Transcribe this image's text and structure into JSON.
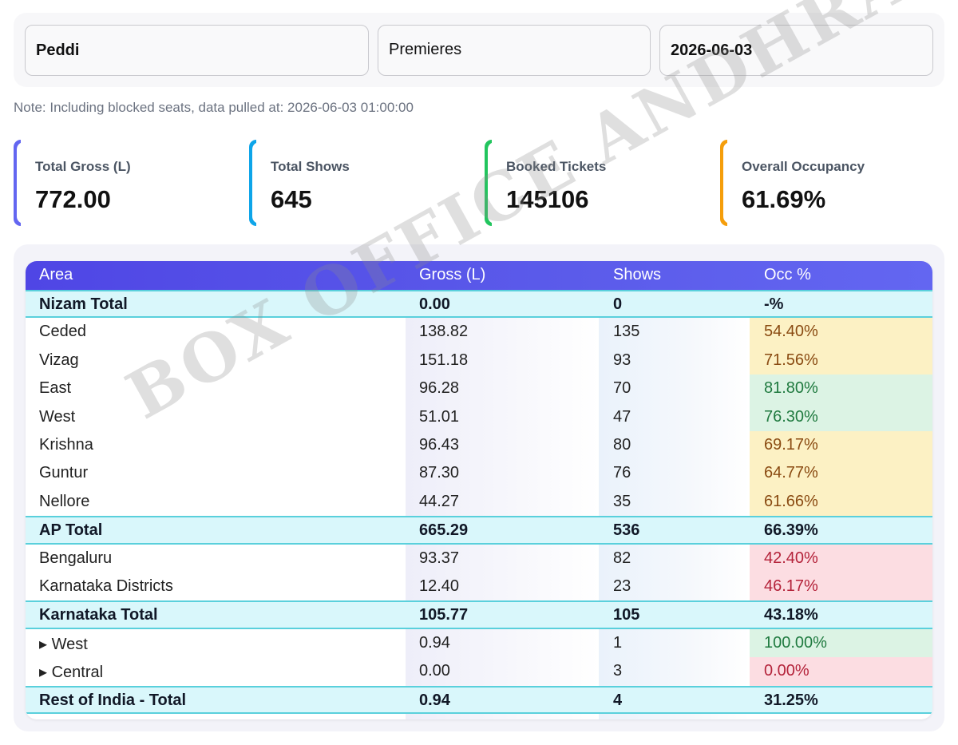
{
  "filters": {
    "movie": "Peddi",
    "type": "Premieres",
    "date": "2026-06-03"
  },
  "note": "Note: Including blocked seats, data pulled at: 2026-06-03 01:00:00",
  "cards": [
    {
      "label": "Total Gross (L)",
      "value": "772.00",
      "color": "#6366f1"
    },
    {
      "label": "Total Shows",
      "value": "645",
      "color": "#0ea5e9"
    },
    {
      "label": "Booked Tickets",
      "value": "145106",
      "color": "#22c55e"
    },
    {
      "label": "Overall Occupancy",
      "value": "61.69%",
      "color": "#f59e0b"
    }
  ],
  "table": {
    "headers": [
      "Area",
      "Gross (L)",
      "Shows",
      "Occ %"
    ],
    "rows": [
      {
        "area": "Nizam Total",
        "gross": "0.00",
        "shows": "0",
        "occ": "-%",
        "total": true
      },
      {
        "area": "Ceded",
        "gross": "138.82",
        "shows": "135",
        "occ": "54.40%",
        "level": "mid"
      },
      {
        "area": "Vizag",
        "gross": "151.18",
        "shows": "93",
        "occ": "71.56%",
        "level": "mid"
      },
      {
        "area": "East",
        "gross": "96.28",
        "shows": "70",
        "occ": "81.80%",
        "level": "high"
      },
      {
        "area": "West",
        "gross": "51.01",
        "shows": "47",
        "occ": "76.30%",
        "level": "high"
      },
      {
        "area": "Krishna",
        "gross": "96.43",
        "shows": "80",
        "occ": "69.17%",
        "level": "mid"
      },
      {
        "area": "Guntur",
        "gross": "87.30",
        "shows": "76",
        "occ": "64.77%",
        "level": "mid"
      },
      {
        "area": "Nellore",
        "gross": "44.27",
        "shows": "35",
        "occ": "61.66%",
        "level": "mid"
      },
      {
        "area": "AP Total",
        "gross": "665.29",
        "shows": "536",
        "occ": "66.39%",
        "total": true
      },
      {
        "area": "Bengaluru",
        "gross": "93.37",
        "shows": "82",
        "occ": "42.40%",
        "level": "low"
      },
      {
        "area": "Karnataka Districts",
        "gross": "12.40",
        "shows": "23",
        "occ": "46.17%",
        "level": "low"
      },
      {
        "area": "Karnataka Total",
        "gross": "105.77",
        "shows": "105",
        "occ": "43.18%",
        "total": true
      },
      {
        "area": "▸ West",
        "gross": "0.94",
        "shows": "1",
        "occ": "100.00%",
        "level": "high"
      },
      {
        "area": "▸ Central",
        "gross": "0.00",
        "shows": "3",
        "occ": "0.00%",
        "level": "low"
      },
      {
        "area": "Rest of India - Total",
        "gross": "0.94",
        "shows": "4",
        "occ": "31.25%",
        "total": true
      }
    ]
  },
  "occ_colors": {
    "high": {
      "bg": "#dcf3e4",
      "fg": "#1f7a3f"
    },
    "mid": {
      "bg": "#fcf1c4",
      "fg": "#8a4b12"
    },
    "low": {
      "bg": "#fcdde2",
      "fg": "#b4233a"
    }
  },
  "watermark": "BOX OFFICE ANDHRA"
}
